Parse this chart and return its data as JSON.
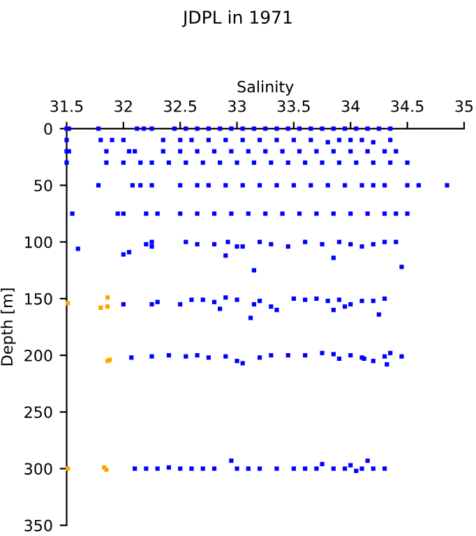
{
  "chart_data": {
    "type": "scatter",
    "title": "JDPL in 1971",
    "xlabel": "Salinity",
    "ylabel": "Depth [m]",
    "xlim": [
      31.5,
      35
    ],
    "xticks": [
      31.5,
      32,
      32.5,
      33,
      33.5,
      34,
      34.5,
      35
    ],
    "ylim": [
      350,
      0
    ],
    "yticks": [
      0,
      50,
      100,
      150,
      200,
      250,
      300,
      350
    ],
    "marker": "square",
    "grid": false,
    "legend": false,
    "series": [
      {
        "color": "#0000ff",
        "x": [
          31.5,
          31.52,
          31.78,
          32.12,
          32.18,
          32.25,
          32.45,
          32.55,
          32.65,
          32.75,
          32.85,
          32.95,
          33.05,
          33.15,
          33.25,
          33.35,
          33.45,
          33.55,
          33.65,
          33.75,
          33.85,
          33.95,
          34.05,
          34.15,
          34.25,
          34.35,
          31.5,
          31.8,
          31.9,
          32.0,
          32.35,
          32.5,
          32.6,
          32.75,
          32.9,
          33.05,
          33.2,
          33.35,
          33.5,
          33.65,
          33.8,
          33.9,
          34.0,
          34.1,
          34.2,
          34.35,
          31.5,
          31.52,
          31.85,
          32.05,
          32.1,
          32.35,
          32.5,
          32.65,
          32.8,
          32.95,
          33.1,
          33.25,
          33.4,
          33.55,
          33.7,
          33.85,
          34.0,
          34.15,
          34.3,
          34.4,
          31.5,
          31.85,
          32.0,
          32.15,
          32.25,
          32.4,
          32.55,
          32.7,
          32.85,
          33.0,
          33.15,
          33.3,
          33.45,
          33.6,
          33.75,
          33.9,
          34.05,
          34.2,
          34.35,
          34.5,
          31.78,
          32.08,
          32.15,
          32.25,
          32.5,
          32.65,
          32.75,
          32.9,
          33.05,
          33.2,
          33.35,
          33.5,
          33.65,
          33.8,
          33.95,
          34.1,
          34.2,
          34.3,
          34.5,
          34.6,
          34.85,
          31.55,
          31.95,
          32.0,
          32.2,
          32.3,
          32.5,
          32.65,
          32.8,
          32.95,
          33.1,
          33.25,
          33.4,
          33.55,
          33.7,
          33.85,
          34.0,
          34.15,
          34.3,
          34.4,
          34.5,
          31.6,
          32.0,
          32.05,
          32.2,
          32.25,
          32.25,
          32.55,
          32.65,
          32.8,
          32.9,
          32.92,
          33.0,
          33.05,
          33.15,
          33.2,
          33.3,
          33.45,
          33.6,
          33.75,
          33.85,
          33.9,
          34.0,
          34.1,
          34.2,
          34.3,
          34.4,
          34.45,
          32.0,
          32.25,
          32.3,
          32.5,
          32.6,
          32.7,
          32.8,
          32.85,
          32.9,
          33.0,
          33.12,
          33.15,
          33.2,
          33.3,
          33.35,
          33.5,
          33.6,
          33.7,
          33.8,
          33.85,
          33.9,
          33.95,
          34.0,
          34.1,
          34.2,
          34.25,
          34.3,
          32.07,
          32.25,
          32.4,
          32.55,
          32.65,
          32.75,
          32.9,
          33.0,
          33.05,
          33.2,
          33.3,
          33.45,
          33.6,
          33.75,
          33.85,
          33.9,
          34.0,
          34.1,
          34.12,
          34.2,
          34.3,
          34.32,
          34.35,
          34.45,
          32.1,
          32.2,
          32.3,
          32.4,
          32.5,
          32.6,
          32.7,
          32.8,
          32.95,
          33.0,
          33.1,
          33.2,
          33.35,
          33.5,
          33.6,
          33.7,
          33.75,
          33.85,
          33.95,
          34.0,
          34.05,
          34.1,
          34.15,
          34.2,
          34.3
        ],
        "values": [
          0,
          0,
          0,
          0,
          0,
          0,
          0,
          0,
          0,
          0,
          0,
          0,
          0,
          0,
          0,
          0,
          0,
          0,
          0,
          0,
          0,
          0,
          0,
          0,
          0,
          0,
          10,
          10,
          10,
          10,
          10,
          10,
          10,
          10,
          10,
          10,
          10,
          10,
          10,
          10,
          12,
          10,
          10,
          10,
          12,
          10,
          20,
          20,
          20,
          20,
          20,
          20,
          20,
          20,
          20,
          20,
          20,
          20,
          20,
          20,
          20,
          20,
          20,
          20,
          20,
          20,
          30,
          30,
          30,
          30,
          30,
          30,
          30,
          30,
          30,
          30,
          30,
          30,
          30,
          30,
          30,
          30,
          30,
          30,
          30,
          30,
          50,
          50,
          50,
          50,
          50,
          50,
          50,
          50,
          50,
          50,
          50,
          50,
          50,
          50,
          50,
          50,
          50,
          50,
          50,
          50,
          50,
          75,
          75,
          75,
          75,
          75,
          75,
          75,
          75,
          75,
          75,
          75,
          75,
          75,
          75,
          75,
          75,
          75,
          75,
          75,
          75,
          106,
          111,
          109,
          102,
          100,
          104,
          100,
          102,
          102,
          112,
          100,
          104,
          104,
          125,
          100,
          102,
          104,
          100,
          102,
          114,
          100,
          102,
          104,
          102,
          100,
          100,
          122,
          155,
          155,
          153,
          155,
          151,
          151,
          153,
          159,
          149,
          151,
          167,
          155,
          152,
          157,
          160,
          150,
          151,
          150,
          152,
          160,
          151,
          157,
          155,
          152,
          152,
          164,
          150,
          202,
          201,
          200,
          201,
          200,
          202,
          201,
          205,
          207,
          202,
          200,
          200,
          200,
          198,
          199,
          203,
          200,
          202,
          203,
          205,
          201,
          208,
          198,
          201,
          300,
          300,
          300,
          299,
          300,
          300,
          300,
          300,
          293,
          300,
          300,
          300,
          300,
          300,
          300,
          300,
          296,
          300,
          300,
          297,
          302,
          300,
          293,
          300,
          300
        ]
      },
      {
        "color": "#ffa500",
        "x": [
          31.51,
          31.8,
          31.86,
          31.86,
          31.86,
          31.88,
          31.51,
          31.83,
          31.85
        ],
        "values": [
          154,
          158,
          149,
          157,
          205,
          204,
          300,
          299,
          301
        ]
      }
    ]
  }
}
